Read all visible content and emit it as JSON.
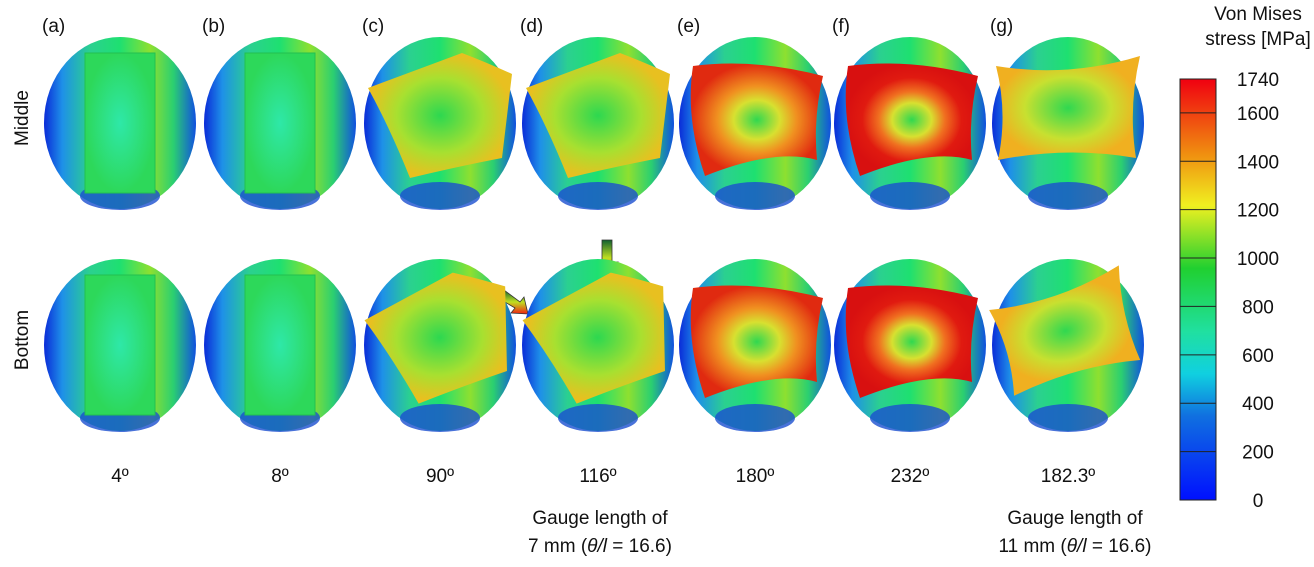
{
  "panels": [
    {
      "label": "(a)",
      "angle": "4º"
    },
    {
      "label": "(b)",
      "angle": "8º"
    },
    {
      "label": "(c)",
      "angle": "90º"
    },
    {
      "label": "(d)",
      "angle": "116º"
    },
    {
      "label": "(e)",
      "angle": "180º"
    },
    {
      "label": "(f)",
      "angle": "232º"
    },
    {
      "label": "(g)",
      "angle": "182.3º"
    }
  ],
  "rows": [
    "Middle",
    "Bottom"
  ],
  "notes": [
    {
      "line1": "Gauge length of",
      "prefix": "7 mm (",
      "symbol": "θ/l",
      "suffix": " = 16.6)"
    },
    {
      "line1": "Gauge length of",
      "prefix": "11 mm (",
      "symbol": "θ/l",
      "suffix": " = 16.6)"
    }
  ],
  "colorbar": {
    "title": [
      "Von Mises",
      "stress [MPa]"
    ],
    "lim": [
      0,
      1740
    ],
    "ticks": [
      0,
      200,
      400,
      600,
      800,
      1000,
      1200,
      1400,
      1600,
      1740
    ]
  }
}
